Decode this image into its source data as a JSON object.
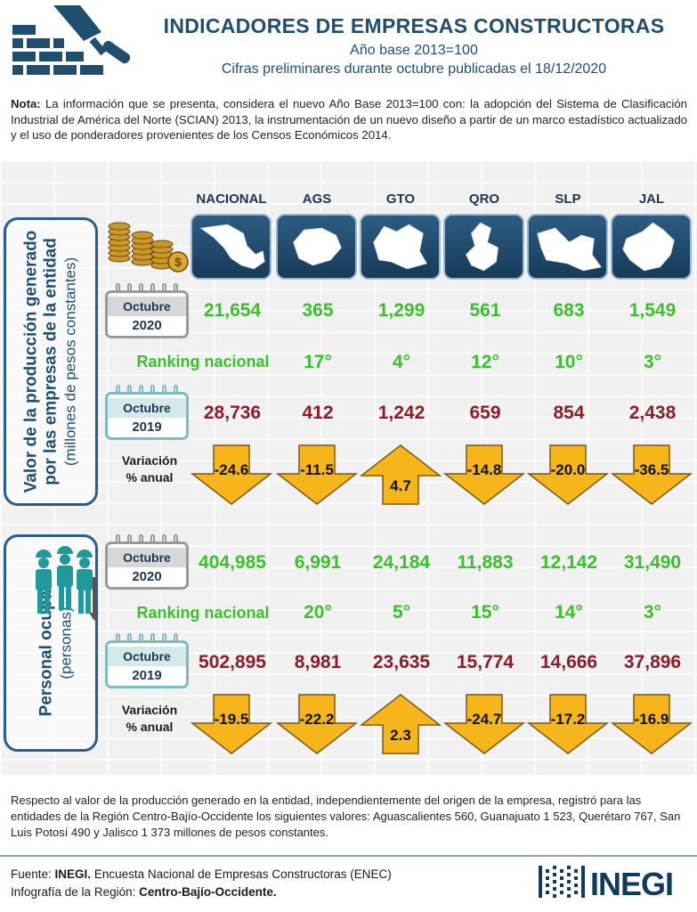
{
  "header": {
    "title": "INDICADORES DE EMPRESAS CONSTRUCTORAS",
    "subtitle1": "Año base 2013=100",
    "subtitle2": "Cifras preliminares durante octubre publicadas el 18/12/2020"
  },
  "note": {
    "label": "Nota:",
    "text": "La información que se presenta, considera el nuevo Año Base 2013=100 con: la adopción del Sistema de Clasificación Industrial de América del Norte (SCIAN) 2013, la instrumentación de un nuevo diseño a partir de un marco estadístico actualizado y el uso de ponderadores provenientes de los Censos Económicos 2014."
  },
  "columns": [
    "NACIONAL",
    "AGS",
    "GTO",
    "QRO",
    "SLP",
    "JAL"
  ],
  "production": {
    "side_title1": "Valor de la producción generado",
    "side_title2": "por las empresas de la entidad",
    "side_sub": "(millones de pesos constantes)",
    "cal1": {
      "month": "Octubre",
      "year": "2020"
    },
    "cal2": {
      "month": "Octubre",
      "year": "2019"
    },
    "values_2020": [
      "21,654",
      "365",
      "1,299",
      "561",
      "683",
      "1,549"
    ],
    "ranking_label": "Ranking nacional",
    "ranking": [
      "17°",
      "4°",
      "12°",
      "10°",
      "3°"
    ],
    "values_2019": [
      "28,736",
      "412",
      "1,242",
      "659",
      "854",
      "2,438"
    ],
    "variation_label1": "Variación",
    "variation_label2": "% anual",
    "variation": [
      "-24.6",
      "-11.5",
      "4.7",
      "-14.8",
      "-20.0",
      "-36.5"
    ]
  },
  "personnel": {
    "side_title": "Personal ocupado",
    "side_sub": "(personas)",
    "cal1": {
      "month": "Octubre",
      "year": "2020"
    },
    "cal2": {
      "month": "Octubre",
      "year": "2019"
    },
    "values_2020": [
      "404,985",
      "6,991",
      "24,184",
      "11,883",
      "12,142",
      "31,490"
    ],
    "ranking_label": "Ranking nacional",
    "ranking": [
      "20°",
      "5°",
      "15°",
      "14°",
      "3°"
    ],
    "values_2019": [
      "502,895",
      "8,981",
      "23,635",
      "15,774",
      "14,666",
      "37,896"
    ],
    "variation_label1": "Variación",
    "variation_label2": "% anual",
    "variation": [
      "-19.5",
      "-22.2",
      "2.3",
      "-24.7",
      "-17.2",
      "-16.9"
    ]
  },
  "footnote": "Respecto al valor de la producción generado en la entidad, independientemente del origen de la empresa, registró para las entidades de la Región Centro-Bajío-Occidente los siguientes valores: Aguascalientes 560, Guanajuato 1 523, Querétaro 767, San Luis Potosí 490 y Jalisco 1 373 millones de pesos constantes.",
  "source": {
    "label1": "Fuente:",
    "org": "INEGI.",
    "text1": "Encuesta Nacional de Empresas Constructoras (ENEC)",
    "label2": "Infografía de la Región:",
    "region": "Centro-Bajío-Occidente."
  },
  "brand": "INEGI",
  "colors": {
    "navy": "#1f4e6e",
    "green": "#3cbf2e",
    "red": "#8b1c2b",
    "arrow": "#f5b51b"
  }
}
